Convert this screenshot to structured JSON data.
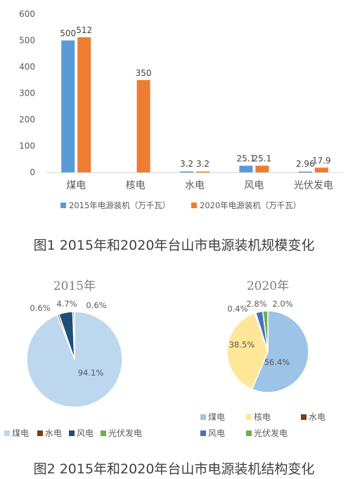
{
  "figure1": {
    "caption": "图1 2015年和2020年台山市电源装机规模变化",
    "chart_data": {
      "type": "bar",
      "categories": [
        "煤电",
        "核电",
        "水电",
        "风电",
        "光伏发电"
      ],
      "series": [
        {
          "name": "2015年电源装机（万千瓦）",
          "values": [
            500,
            0,
            3.2,
            25.1,
            2.96
          ],
          "labels": [
            "500",
            "",
            "3.2",
            "25.1",
            "2.96"
          ],
          "color": "#5B9BD5"
        },
        {
          "name": "2020年电源装机（万千瓦）",
          "values": [
            512,
            350,
            3.2,
            25.1,
            17.9
          ],
          "labels": [
            "512",
            "350",
            "3.2",
            "25.1",
            "17.9"
          ],
          "color": "#ED7D31"
        }
      ],
      "ylim": [
        0,
        600
      ],
      "yticks": [
        "0",
        "100",
        "200",
        "300",
        "400",
        "500",
        "600"
      ],
      "grid": false,
      "legend": "bottom"
    }
  },
  "figure2": {
    "caption": "图2 2015年和2020年台山市电源装机结构变化",
    "chart_data": [
      {
        "type": "pie",
        "title": "2015年",
        "slices": [
          {
            "label": "煤电",
            "value": 94.1,
            "text": "94.1%",
            "color": "#BDD7EE"
          },
          {
            "label": "水电",
            "value": 0.6,
            "text": "0.6%",
            "color": "#843C0C"
          },
          {
            "label": "风电",
            "value": 4.7,
            "text": "4.7%",
            "color": "#1F4E79"
          },
          {
            "label": "光伏发电",
            "value": 0.6,
            "text": "0.6%",
            "color": "#70AD47"
          }
        ],
        "legend": "bottom",
        "legend_labels": [
          "煤电",
          "水电",
          "风电",
          "光伏发电"
        ]
      },
      {
        "type": "pie",
        "title": "2020年",
        "slices": [
          {
            "label": "煤电",
            "value": 56.4,
            "text": "56.4%",
            "color": "#9DC3E6"
          },
          {
            "label": "核电",
            "value": 38.5,
            "text": "38.5%",
            "color": "#FFE699"
          },
          {
            "label": "水电",
            "value": 0.4,
            "text": "0.4%",
            "color": "#843C0C"
          },
          {
            "label": "风电",
            "value": 2.8,
            "text": "2.8%",
            "color": "#4472C4"
          },
          {
            "label": "光伏发电",
            "value": 2.0,
            "text": "2.0%",
            "color": "#70AD47"
          }
        ],
        "legend": "bottom",
        "legend_labels": [
          "煤电",
          "核电",
          "水电",
          "风电",
          "光伏发电"
        ]
      }
    ]
  }
}
